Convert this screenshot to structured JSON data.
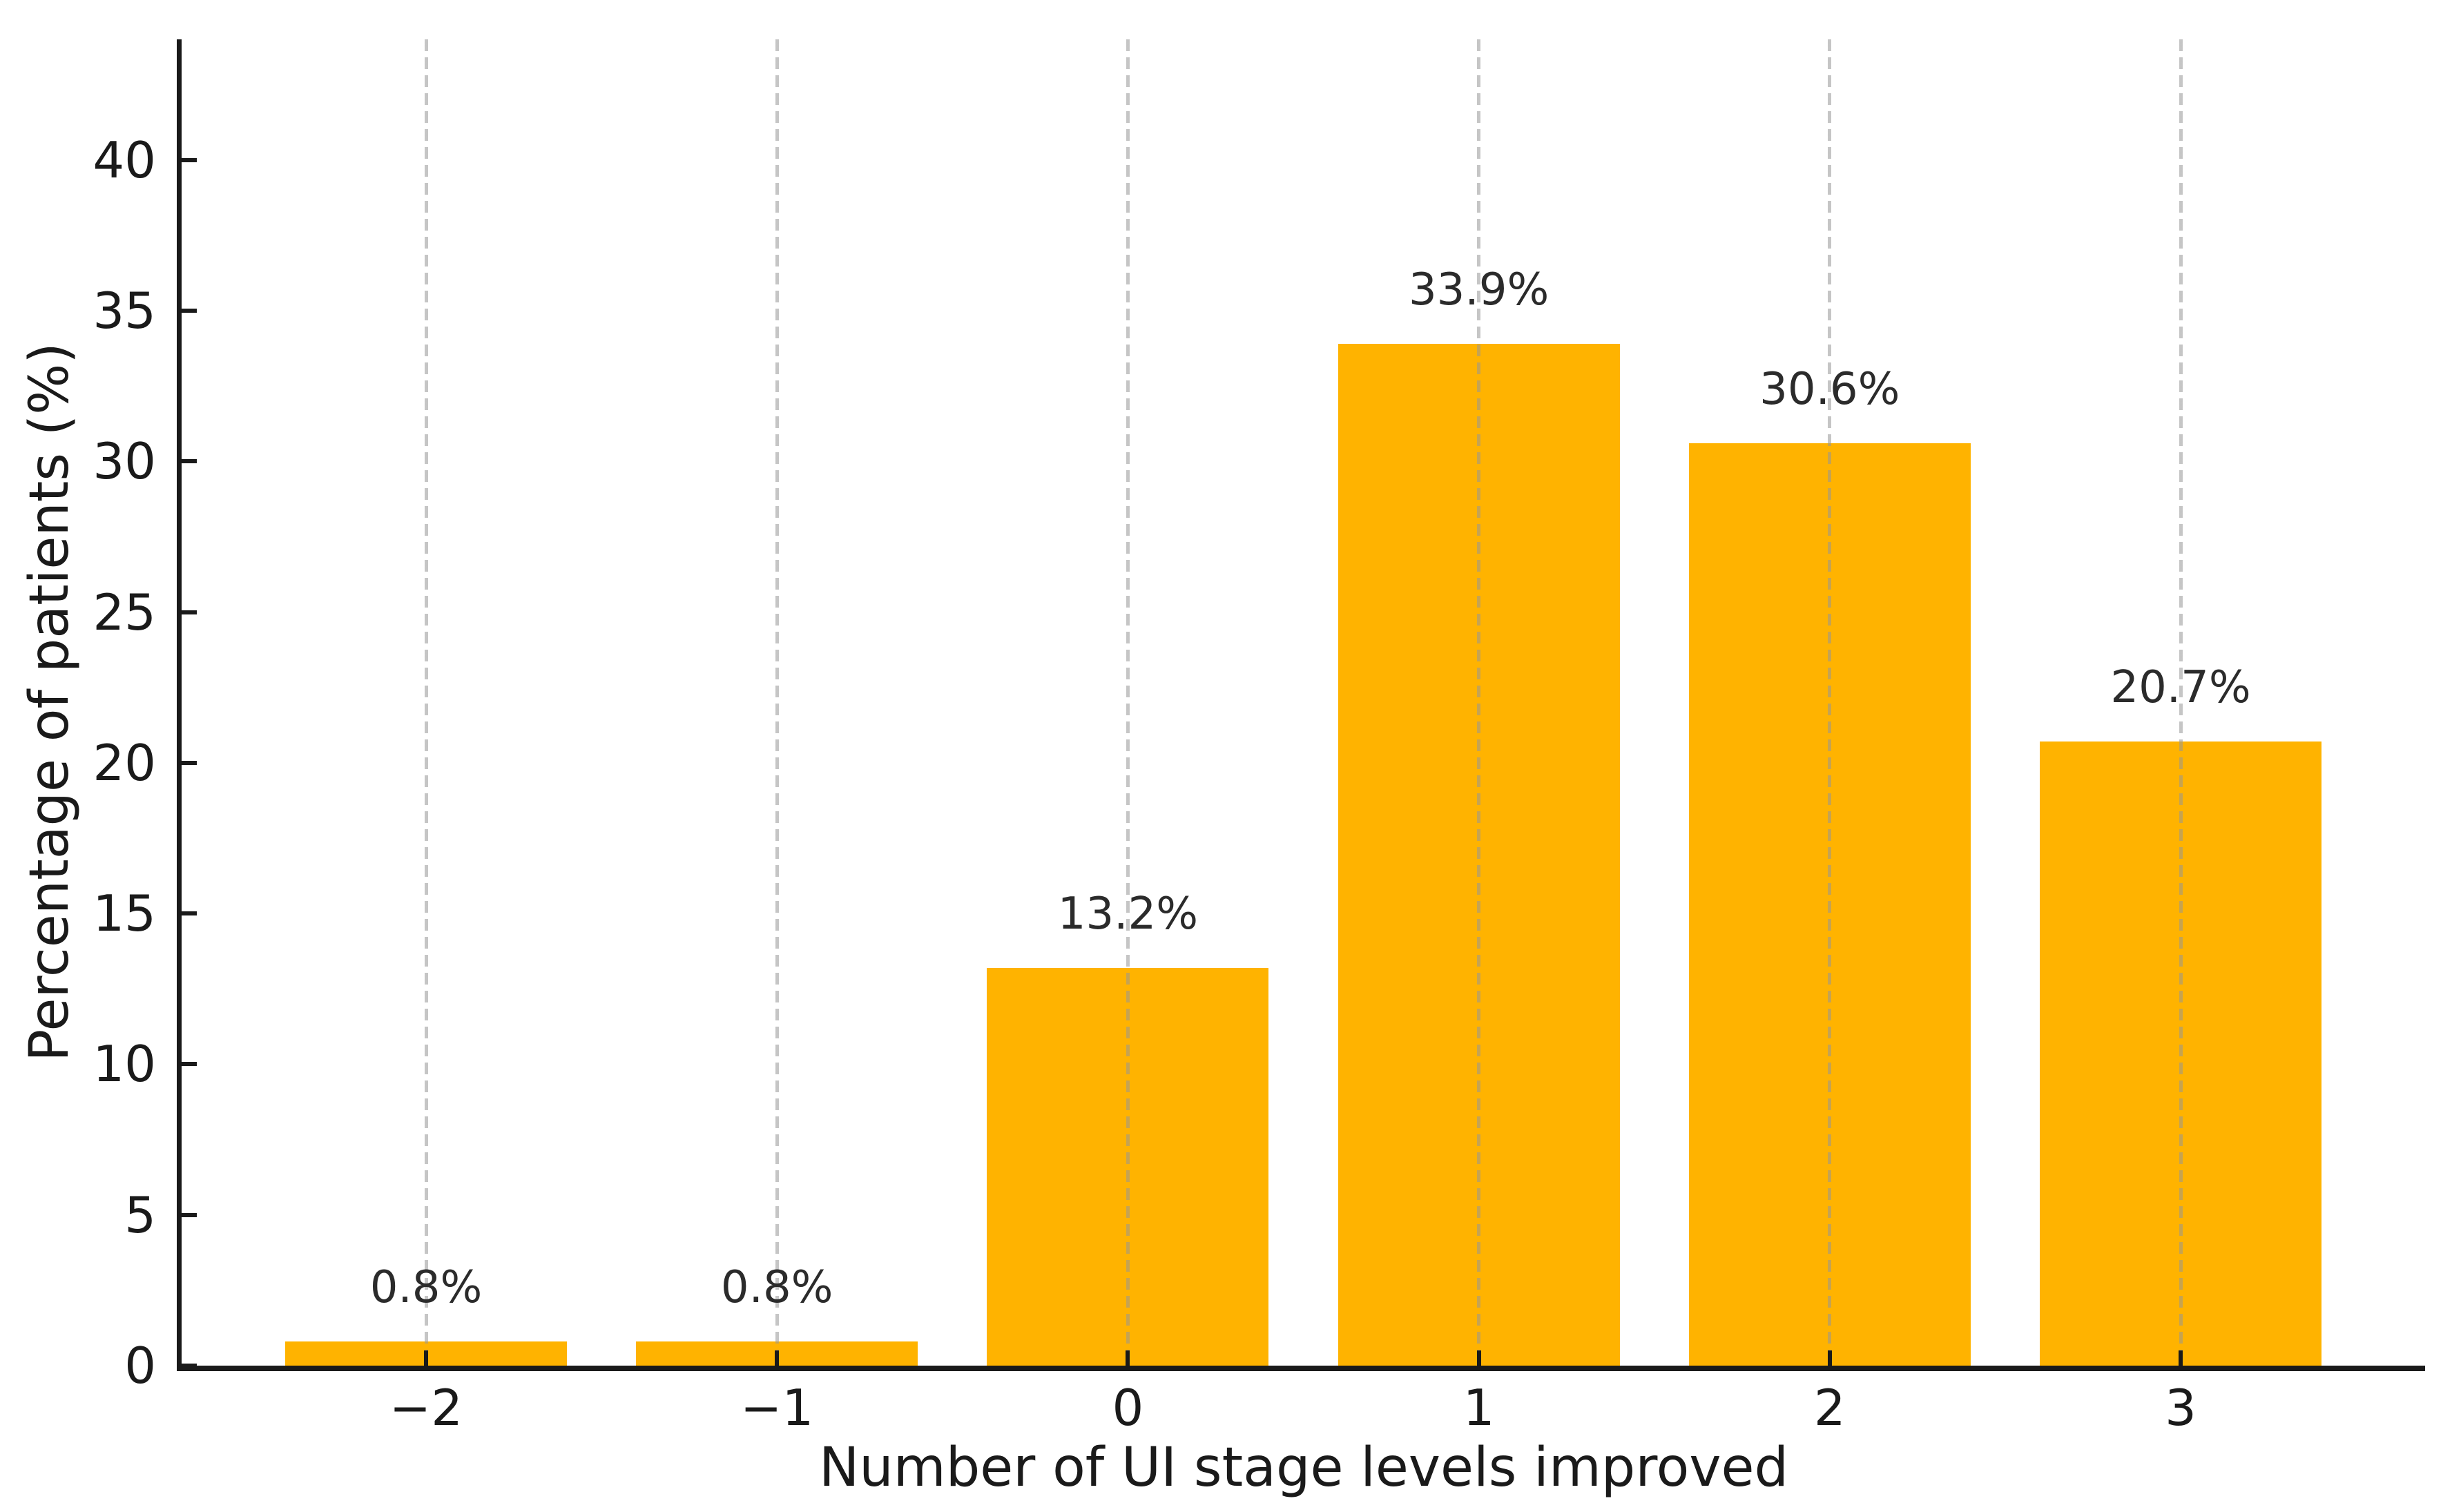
{
  "figure": {
    "background_color": "#ffffff",
    "bar_color": "#FFB300",
    "grid_color": "#c9c9c9",
    "axis_color": "#1a1a1a",
    "label_color": "#2b2b2b"
  },
  "chart_data": {
    "type": "bar",
    "title": "",
    "xlabel": "Number of UI stage levels improved",
    "ylabel": "Percentage of patients (%)",
    "categories": [
      "−2",
      "−1",
      "0",
      "1",
      "2",
      "3"
    ],
    "values": [
      0.8,
      0.8,
      13.2,
      33.9,
      30.6,
      20.7
    ],
    "bar_labels": [
      "0.8%",
      "0.8%",
      "13.2%",
      "33.9%",
      "30.6%",
      "20.7%"
    ],
    "yticks": [
      0,
      5,
      10,
      15,
      20,
      25,
      30,
      35,
      40
    ],
    "ylim": [
      0,
      44
    ],
    "grid": "vertical-dashed",
    "legend_position": "none",
    "bar_color": "#FFB300"
  }
}
